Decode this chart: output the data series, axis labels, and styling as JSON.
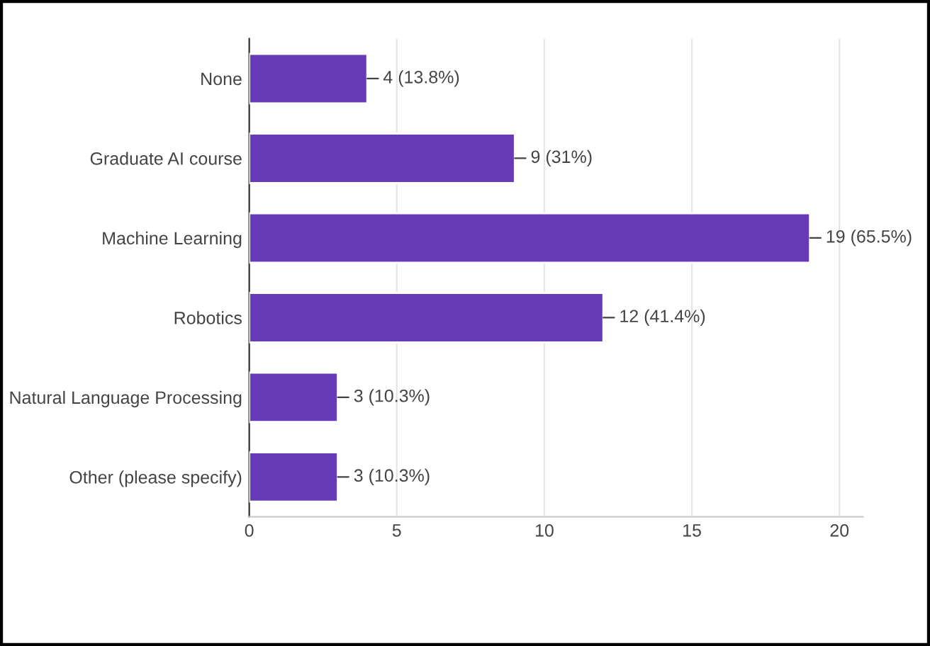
{
  "chart_data": {
    "type": "bar",
    "orientation": "horizontal",
    "categories": [
      "None",
      "Graduate AI course",
      "Machine Learning",
      "Robotics",
      "Natural Language Processing",
      "Other (please specify)"
    ],
    "values": [
      4,
      9,
      19,
      12,
      3,
      3
    ],
    "value_labels": [
      "4 (13.8%)",
      "9 (31%)",
      "19 (65.5%)",
      "12 (41.4%)",
      "3 (10.3%)",
      "3 (10.3%)"
    ],
    "color": "#673ab7",
    "xlim": [
      0,
      20.8
    ],
    "xticks": [
      0,
      5,
      10,
      15,
      20
    ],
    "grid": "x"
  }
}
